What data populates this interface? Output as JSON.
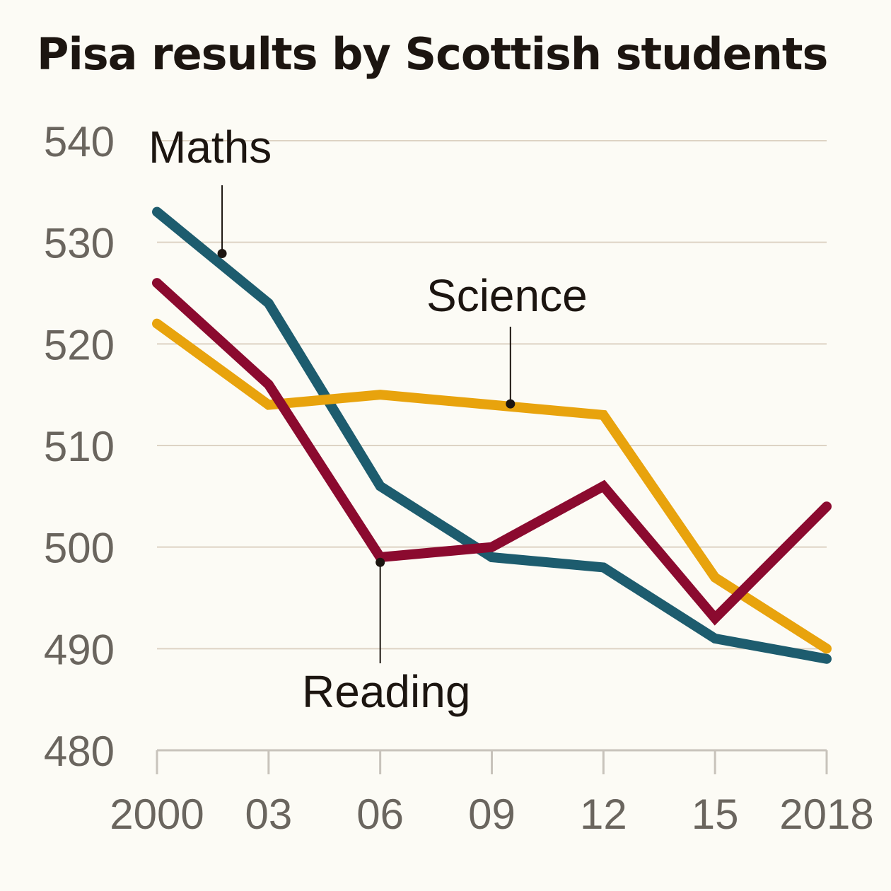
{
  "chart_data": {
    "type": "line",
    "title": "Pisa results by Scottish students",
    "xlabel": "",
    "ylabel": "",
    "x": [
      "2000",
      "03",
      "06",
      "09",
      "12",
      "15",
      "2018"
    ],
    "yticks": [
      "480",
      "490",
      "500",
      "510",
      "520",
      "530",
      "540"
    ],
    "ylim": [
      480,
      540
    ],
    "grid": true,
    "series": [
      {
        "name": "Maths",
        "color": "#1d5c6e",
        "values": [
          533,
          524,
          506,
          499,
          498,
          491,
          489
        ]
      },
      {
        "name": "Science",
        "color": "#e8a30d",
        "values": [
          522,
          514,
          515,
          514,
          513,
          497,
          490
        ]
      },
      {
        "name": "Reading",
        "color": "#8b0a2f",
        "values": [
          526,
          516,
          499,
          500,
          506,
          493,
          504
        ]
      }
    ],
    "annotations": [
      {
        "series": "Maths",
        "label": "Maths",
        "anchor_x": 1.75,
        "anchor_y": 528.9
      },
      {
        "series": "Science",
        "label": "Science",
        "anchor_x": 9.5,
        "anchor_y": 514.1
      },
      {
        "series": "Reading",
        "label": "Reading",
        "anchor_x": 6,
        "anchor_y": 498.5
      }
    ]
  }
}
